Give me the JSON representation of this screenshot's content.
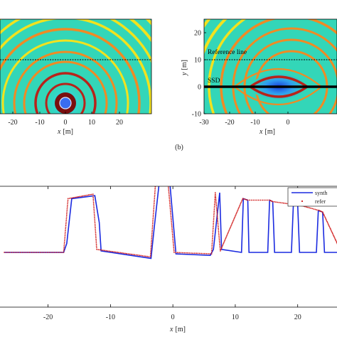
{
  "colors": {
    "field_bg": "#33d6b8",
    "ring_yellow": "#f2e21e",
    "ring_orange": "#f08a24",
    "ring_red": "#b8231a",
    "ring_dark": "#7a0f0f",
    "center_blue": "#1b3fd8",
    "ssd_line": "#000000",
    "synth_line": "#1a2ae0",
    "ref_marker": "#d01818"
  },
  "top_left": {
    "xlabel_var": "x",
    "xlabel_unit": "[m]",
    "xticks": [
      "-20",
      "-10",
      "0",
      "10",
      "20"
    ]
  },
  "top_right": {
    "panel_label": "(b)",
    "xlabel_var": "x",
    "xlabel_unit": "[m]",
    "ylabel_var": "y",
    "ylabel_unit": "[m]",
    "xticks": [
      "-30",
      "-20",
      "-10",
      "0"
    ],
    "yticks": [
      "20",
      "10",
      "0",
      "-10"
    ],
    "annotation_reference": "Reference line",
    "annotation_ssd": "SSD"
  },
  "bottom": {
    "xlabel_var": "x",
    "xlabel_unit": "[m]",
    "xticks": [
      "-20",
      "-10",
      "0",
      "10",
      "20"
    ],
    "legend_synth": "synth",
    "legend_ref": "refer"
  },
  "chart_data": [
    {
      "type": "heatmap",
      "panel": "top-left",
      "x_range": [
        -25,
        30
      ],
      "description_of_source": "point source field, concentric rings",
      "reference_line_y_fraction": 0.35
    },
    {
      "type": "heatmap",
      "panel": "top-right",
      "x_range": [
        -30,
        5
      ],
      "y_range": [
        -10,
        25
      ],
      "reference_line_y": 10,
      "ssd_y": 0
    },
    {
      "type": "line",
      "panel": "bottom",
      "xlim": [
        -27,
        27
      ],
      "grid": false,
      "legend_position": "top-right",
      "series": [
        {
          "name": "synth",
          "x": [
            -27,
            -17.5,
            -17,
            -16.2,
            -12.5,
            -11.8,
            -11.5,
            -3.5,
            -3,
            -2.2,
            -0.5,
            0.5,
            6,
            6.5,
            7.5,
            7.8,
            11,
            11.3,
            12,
            12.2,
            15.2,
            15.5,
            16,
            16.3,
            19,
            19.3,
            20,
            20.3,
            23,
            23.3,
            24,
            24.3,
            27
          ],
          "y": [
            0,
            0,
            0.3,
            1.8,
            1.9,
            1.0,
            0.05,
            -0.2,
            0.8,
            2.3,
            2.35,
            -0.05,
            -0.1,
            0.1,
            2.0,
            0.1,
            0.0,
            1.8,
            1.75,
            0.0,
            0.0,
            1.75,
            1.7,
            0.0,
            0.0,
            1.6,
            1.6,
            0.0,
            0.0,
            1.4,
            1.35,
            0.0,
            0.0
          ]
        },
        {
          "name": "refer",
          "x": [
            -27,
            -17.5,
            -16.8,
            -12.8,
            -12.2,
            -3.6,
            -2.8,
            -0.8,
            0.2,
            6.2,
            6.8,
            7.6,
            11.2,
            12.0,
            15.5,
            16.0,
            19.5,
            20.0,
            23.5,
            24.0,
            27
          ],
          "y": [
            0,
            0,
            1.8,
            1.95,
            0.1,
            -0.15,
            2.25,
            2.4,
            0.0,
            -0.05,
            2.0,
            0.05,
            1.8,
            1.75,
            1.75,
            1.7,
            1.6,
            1.6,
            1.4,
            1.35,
            0.0
          ]
        }
      ]
    }
  ]
}
